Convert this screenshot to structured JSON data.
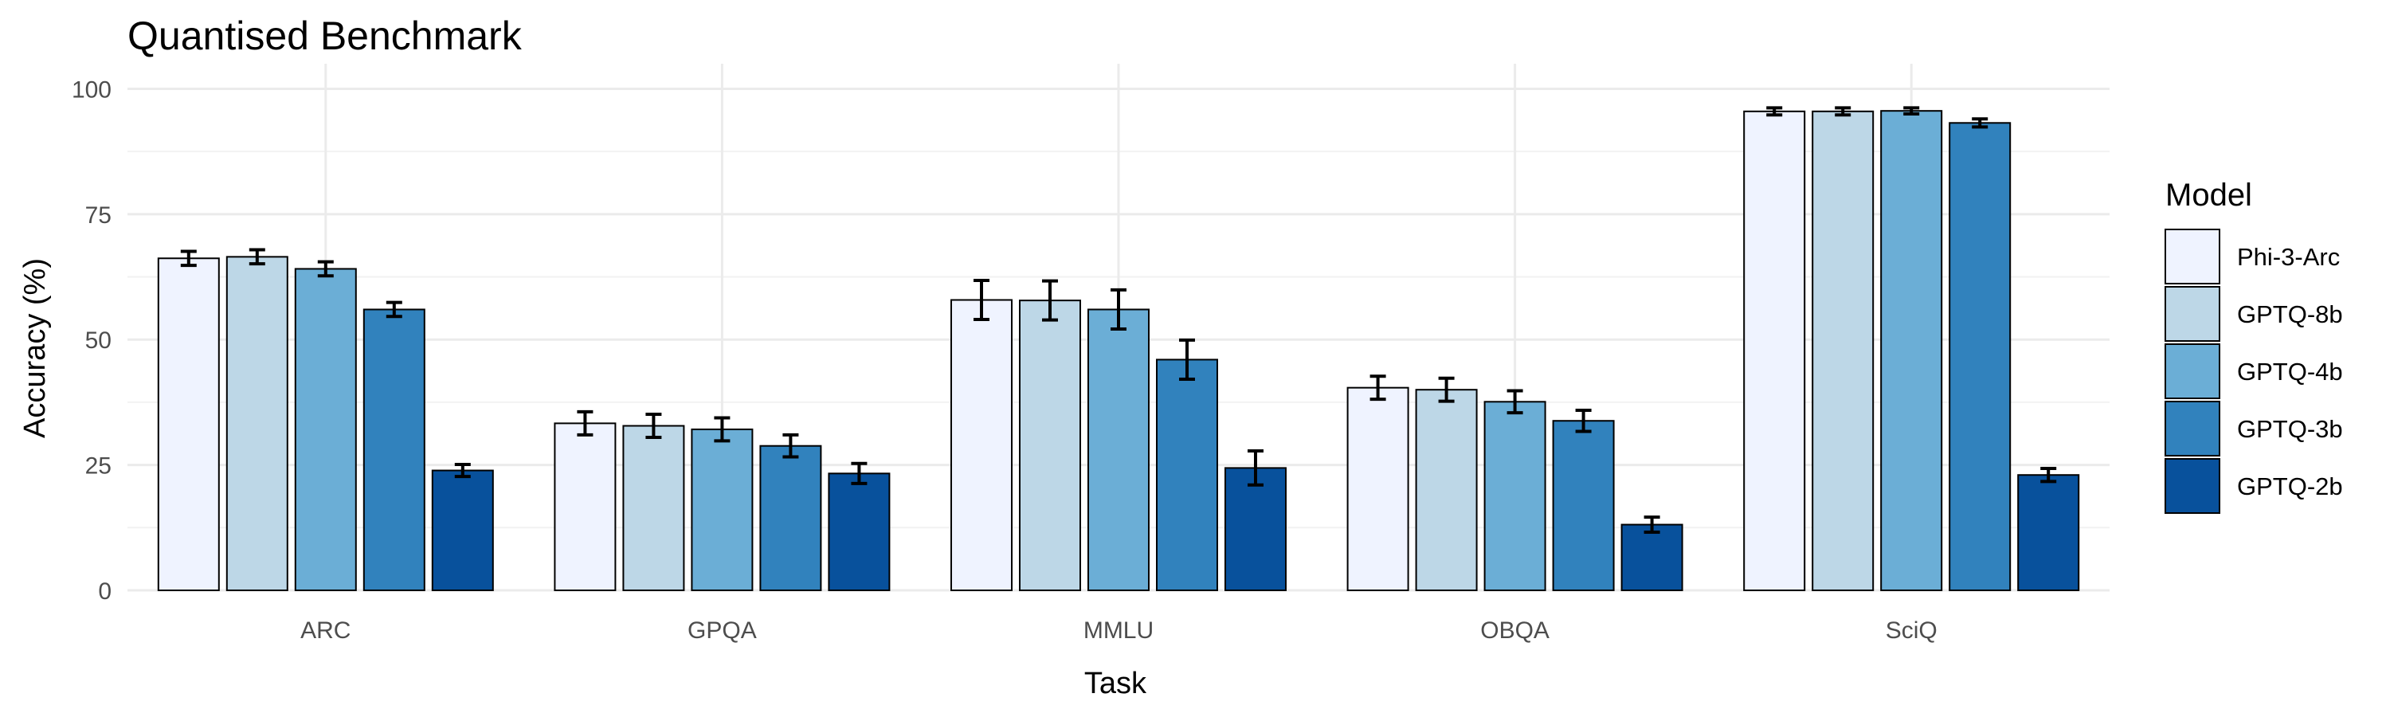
{
  "chart_data": {
    "type": "bar",
    "title": "Quantised Benchmark",
    "xlabel": "Task",
    "ylabel": "Accuracy (%)",
    "ylim": [
      0,
      105
    ],
    "yticks": [
      0,
      25,
      50,
      75,
      100
    ],
    "grid": true,
    "legend_title": "Model",
    "legend_position": "right",
    "categories": [
      "ARC",
      "GPQA",
      "MMLU",
      "OBQA",
      "SciQ"
    ],
    "series": [
      {
        "name": "Phi-3-Arc",
        "color": "#eff3ff",
        "values": [
          66.2,
          33.3,
          57.9,
          40.4,
          95.5
        ],
        "errors": [
          1.4,
          2.3,
          3.9,
          2.3,
          0.7
        ]
      },
      {
        "name": "GPTQ-8b",
        "color": "#bdd7e7",
        "values": [
          66.5,
          32.8,
          57.8,
          40.0,
          95.5
        ],
        "errors": [
          1.4,
          2.3,
          3.9,
          2.3,
          0.7
        ]
      },
      {
        "name": "GPTQ-4b",
        "color": "#6baed6",
        "values": [
          64.1,
          32.1,
          56.0,
          37.6,
          95.6
        ],
        "errors": [
          1.4,
          2.3,
          3.9,
          2.2,
          0.6
        ]
      },
      {
        "name": "GPTQ-3b",
        "color": "#3182bd",
        "values": [
          56.0,
          28.8,
          46.0,
          33.8,
          93.2
        ],
        "errors": [
          1.4,
          2.2,
          3.9,
          2.1,
          0.8
        ]
      },
      {
        "name": "GPTQ-2b",
        "color": "#08519c",
        "values": [
          23.9,
          23.3,
          24.4,
          13.1,
          23.0
        ],
        "errors": [
          1.2,
          2.0,
          3.4,
          1.5,
          1.3
        ]
      }
    ]
  }
}
